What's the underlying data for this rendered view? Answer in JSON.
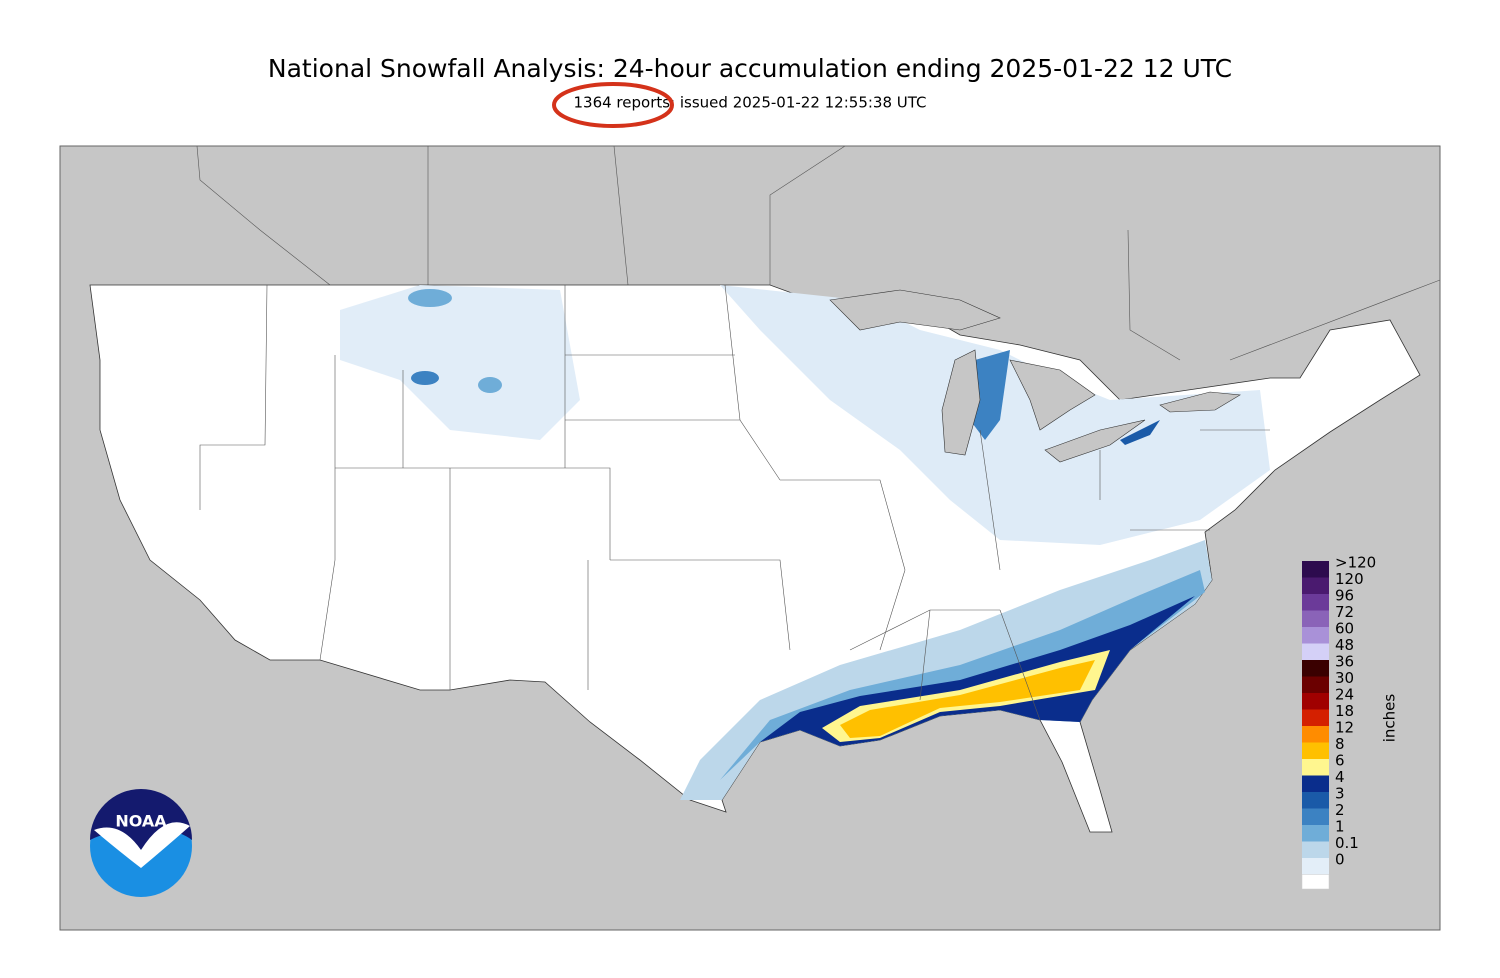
{
  "header": {
    "title": "National Snowfall Analysis: 24-hour accumulation ending 2025-01-22 12 UTC",
    "subtitle": "1364 reports; issued 2025-01-22 12:55:38 UTC"
  },
  "logo": {
    "text": "NOAA"
  },
  "legend": {
    "unit": "inches",
    "entries": [
      {
        "label": ">120",
        "color": "#2d0b4e"
      },
      {
        "label": "120",
        "color": "#4a1a6f"
      },
      {
        "label": "96",
        "color": "#6b3a99"
      },
      {
        "label": "72",
        "color": "#8a63b8"
      },
      {
        "label": "60",
        "color": "#a991d8"
      },
      {
        "label": "48",
        "color": "#d4d0f7"
      },
      {
        "label": "36",
        "color": "#3a0000"
      },
      {
        "label": "30",
        "color": "#6b0000"
      },
      {
        "label": "24",
        "color": "#a00000"
      },
      {
        "label": "18",
        "color": "#d42000"
      },
      {
        "label": "12",
        "color": "#ff8c00"
      },
      {
        "label": "8",
        "color": "#ffc000"
      },
      {
        "label": "6",
        "color": "#fff68f"
      },
      {
        "label": "4",
        "color": "#0a2d8c"
      },
      {
        "label": "3",
        "color": "#1a5aa8"
      },
      {
        "label": "2",
        "color": "#3c82c2"
      },
      {
        "label": "1",
        "color": "#6fadd8"
      },
      {
        "label": "0.1",
        "color": "#bcd7ea"
      },
      {
        "label": "0",
        "color": "#e3eef8"
      }
    ]
  }
}
